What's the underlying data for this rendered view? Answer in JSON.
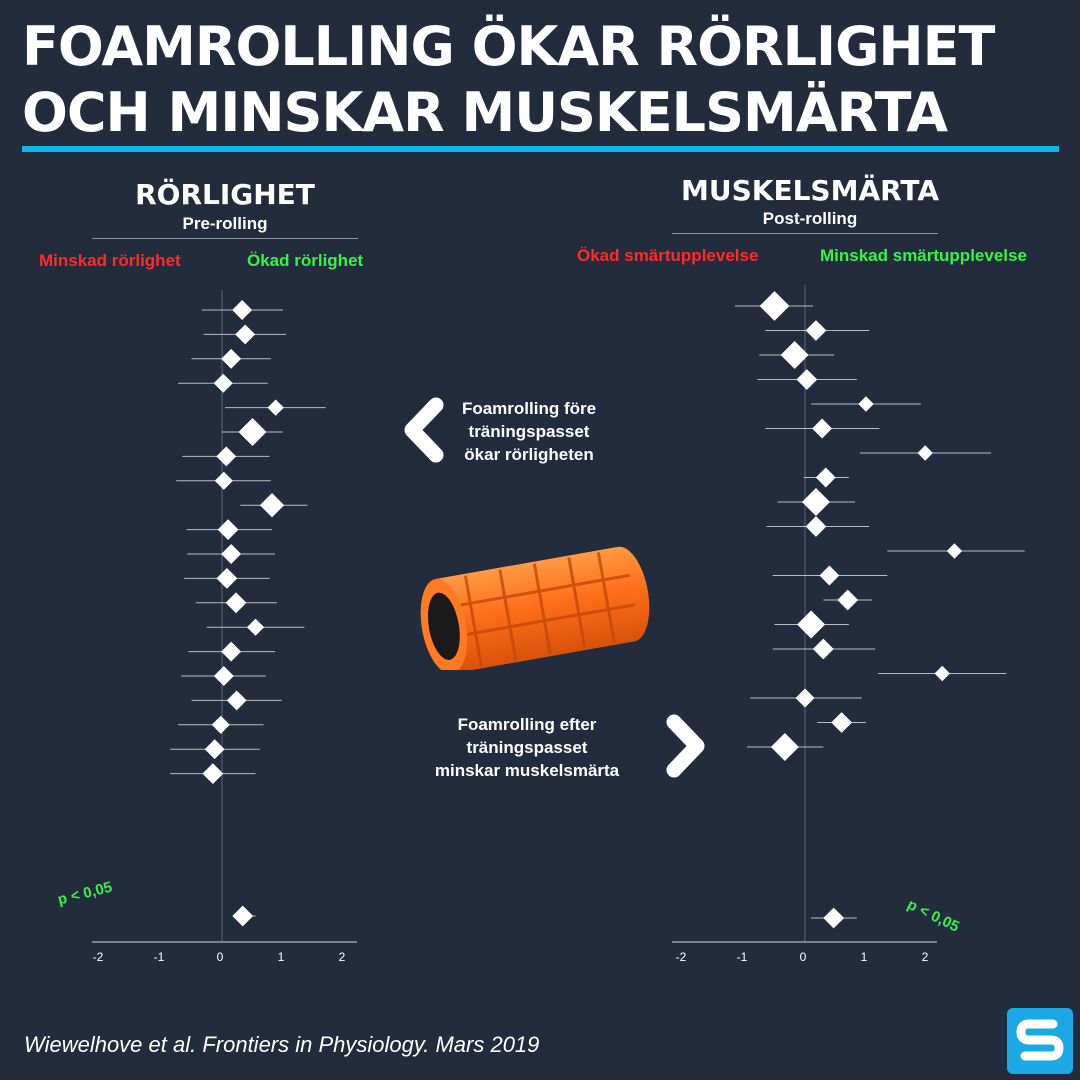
{
  "title_line1": "FOAMROLLING ÖKAR RÖRLIGHET",
  "title_line2": "OCH MINSKAR MUSKELSMÄRTA",
  "colors": {
    "background": "#232c3d",
    "accent": "#0fb4ec",
    "red": "#ff2a2a",
    "green": "#38f24a"
  },
  "left_panel": {
    "title": "RÖRLIGHET",
    "subtitle": "Pre-rolling",
    "label_negative": "Minskad rörlighet",
    "label_positive": "Ökad rörlighet",
    "pvalue": "p < 0,05"
  },
  "right_panel": {
    "title": "MUSKELSMÄRTA",
    "subtitle": "Post-rolling",
    "label_negative": "Ökad smärtupplevelse",
    "label_positive": "Minskad smärtupplevelse",
    "pvalue": "p < 0,05"
  },
  "callouts": {
    "pre": [
      "Foamrolling före",
      "träningspasset",
      "ökar rörligheten"
    ],
    "post": [
      "Foamrolling efter",
      "träningspasset",
      "minskar muskelsmärta"
    ],
    "left_arrow_icon": "chevron-left-icon",
    "right_arrow_icon": "chevron-right-icon"
  },
  "citation": "Wiewelhove et al. Frontiers in Physiology. Mars 2019",
  "logo_icon": "s-logo-icon",
  "image_icon": "foam-roller-image",
  "chart_data": [
    {
      "type": "forest",
      "title": "RÖRLIGHET",
      "subtitle": "Pre-rolling",
      "xlim": [
        -2,
        2
      ],
      "xticks": [
        -2,
        -1,
        0,
        1,
        2
      ],
      "studies": [
        {
          "est": 0.33,
          "lo": -0.33,
          "hi": 1.0,
          "weight": 0.55
        },
        {
          "est": 0.38,
          "lo": -0.3,
          "hi": 1.05,
          "weight": 0.55
        },
        {
          "est": 0.15,
          "lo": -0.5,
          "hi": 0.8,
          "weight": 0.55
        },
        {
          "est": 0.02,
          "lo": -0.72,
          "hi": 0.75,
          "weight": 0.5
        },
        {
          "est": 0.88,
          "lo": 0.05,
          "hi": 1.7,
          "weight": 0.35
        },
        {
          "est": 0.5,
          "lo": 0.0,
          "hi": 1.0,
          "weight": 1.0
        },
        {
          "est": 0.07,
          "lo": -0.65,
          "hi": 0.78,
          "weight": 0.55
        },
        {
          "est": 0.03,
          "lo": -0.75,
          "hi": 0.8,
          "weight": 0.45
        },
        {
          "est": 0.82,
          "lo": 0.3,
          "hi": 1.4,
          "weight": 0.8
        },
        {
          "est": 0.1,
          "lo": -0.58,
          "hi": 0.82,
          "weight": 0.6
        },
        {
          "est": 0.15,
          "lo": -0.57,
          "hi": 0.87,
          "weight": 0.55
        },
        {
          "est": 0.08,
          "lo": -0.62,
          "hi": 0.78,
          "weight": 0.6
        },
        {
          "est": 0.23,
          "lo": -0.43,
          "hi": 0.9,
          "weight": 0.6
        },
        {
          "est": 0.55,
          "lo": -0.25,
          "hi": 1.35,
          "weight": 0.4
        },
        {
          "est": 0.15,
          "lo": -0.55,
          "hi": 0.87,
          "weight": 0.55
        },
        {
          "est": 0.03,
          "lo": -0.67,
          "hi": 0.72,
          "weight": 0.55
        },
        {
          "est": 0.24,
          "lo": -0.5,
          "hi": 0.98,
          "weight": 0.55
        },
        {
          "est": -0.02,
          "lo": -0.72,
          "hi": 0.68,
          "weight": 0.45
        },
        {
          "est": -0.12,
          "lo": -0.85,
          "hi": 0.62,
          "weight": 0.55
        },
        {
          "est": -0.15,
          "lo": -0.85,
          "hi": 0.55,
          "weight": 0.6
        }
      ],
      "pooled": {
        "est": 0.34,
        "lo": 0.18,
        "hi": 0.55,
        "weight": 0.6
      }
    },
    {
      "type": "forest",
      "title": "MUSKELSMÄRTA",
      "subtitle": "Post-rolling",
      "xlim": [
        -2,
        2
      ],
      "xticks": [
        -2,
        -1,
        0,
        1,
        2
      ],
      "studies": [
        {
          "est": -0.5,
          "lo": -1.15,
          "hi": 0.13,
          "weight": 1.1
        },
        {
          "est": 0.18,
          "lo": -0.65,
          "hi": 1.05,
          "weight": 0.6
        },
        {
          "est": -0.17,
          "lo": -0.75,
          "hi": 0.48,
          "weight": 1.0
        },
        {
          "est": 0.03,
          "lo": -0.78,
          "hi": 0.85,
          "weight": 0.6
        },
        {
          "est": 1.0,
          "lo": 0.1,
          "hi": 1.9,
          "weight": 0.3
        },
        {
          "est": 0.28,
          "lo": -0.65,
          "hi": 1.22,
          "weight": 0.55
        },
        {
          "est": 1.97,
          "lo": 0.9,
          "hi": 3.05,
          "weight": 0.3
        },
        {
          "est": 0.34,
          "lo": -0.02,
          "hi": 0.72,
          "weight": 0.55
        },
        {
          "est": 0.18,
          "lo": -0.45,
          "hi": 0.82,
          "weight": 1.0
        },
        {
          "est": 0.18,
          "lo": -0.63,
          "hi": 1.05,
          "weight": 0.6
        },
        {
          "est": 2.45,
          "lo": 1.35,
          "hi": 3.6,
          "weight": 0.3
        },
        {
          "est": 0.4,
          "lo": -0.53,
          "hi": 1.35,
          "weight": 0.55
        },
        {
          "est": 0.7,
          "lo": 0.3,
          "hi": 1.1,
          "weight": 0.6
        },
        {
          "est": 0.1,
          "lo": -0.5,
          "hi": 0.72,
          "weight": 1.0
        },
        {
          "est": 0.3,
          "lo": -0.53,
          "hi": 1.15,
          "weight": 0.6
        },
        {
          "est": 2.25,
          "lo": 1.2,
          "hi": 3.3,
          "weight": 0.3
        },
        {
          "est": 0.0,
          "lo": -0.9,
          "hi": 0.93,
          "weight": 0.5
        },
        {
          "est": 0.6,
          "lo": 0.2,
          "hi": 1.0,
          "weight": 0.6
        },
        {
          "est": -0.33,
          "lo": -0.95,
          "hi": 0.3,
          "weight": 1.0
        }
      ],
      "pooled": {
        "est": 0.47,
        "lo": 0.1,
        "hi": 0.85,
        "weight": 0.6
      }
    }
  ]
}
